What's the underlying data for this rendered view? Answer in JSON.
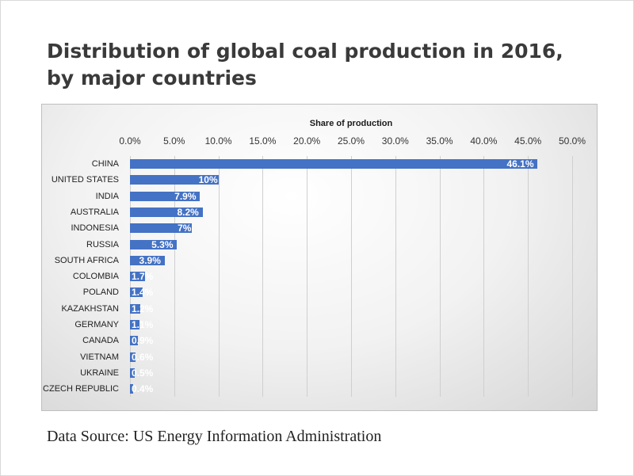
{
  "chart_data": {
    "type": "bar",
    "orientation": "horizontal",
    "title": "Distribution of global coal production in 2016, by major countries",
    "xlabel": "Share of production",
    "ylabel": "",
    "xlim": [
      0,
      50
    ],
    "x_ticks": [
      "0.0%",
      "5.0%",
      "10.0%",
      "15.0%",
      "20.0%",
      "25.0%",
      "30.0%",
      "35.0%",
      "40.0%",
      "45.0%",
      "50.0%"
    ],
    "x_axis_position": "top",
    "grid": true,
    "bar_color": "#4472c4",
    "categories": [
      "CHINA",
      "UNITED STATES",
      "INDIA",
      "AUSTRALIA",
      "INDONESIA",
      "RUSSIA",
      "SOUTH AFRICA",
      "COLOMBIA",
      "POLAND",
      "KAZAKHSTAN",
      "GERMANY",
      "CANADA",
      "VIETNAM",
      "UKRAINE",
      "CZECH REPUBLIC"
    ],
    "values": [
      46.1,
      10,
      7.9,
      8.2,
      7,
      5.3,
      3.9,
      1.7,
      1.4,
      1.2,
      1.1,
      0.9,
      0.6,
      0.5,
      0.4
    ],
    "data_labels": [
      "46.1%",
      "10%",
      "7.9%",
      "8.2%",
      "7%",
      "5.3%",
      "3.9%",
      "1.7%",
      "1.4%",
      "1.2%",
      "1.1%",
      "0.9%",
      "0.6%",
      "0.5%",
      "0.4%"
    ]
  },
  "source": "Data Source: US Energy Information Administration"
}
